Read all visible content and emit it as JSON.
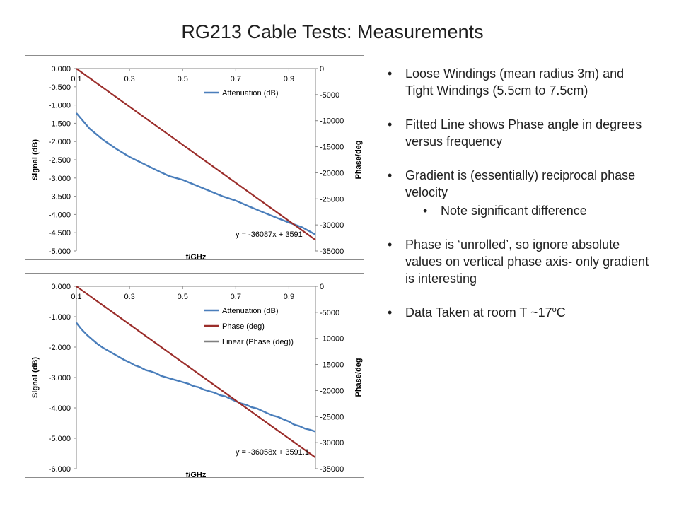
{
  "title": "RG213 Cable Tests: Measurements",
  "bullets": [
    {
      "text": "Loose Windings (mean radius 3m) and Tight Windings (5.5cm to 7.5cm)"
    },
    {
      "text": "Fitted Line shows Phase angle in degrees versus frequency"
    },
    {
      "text": "Gradient is (essentially) reciprocal phase velocity",
      "sub": "Note significant difference"
    },
    {
      "text": "Phase is ‘unrolled’, so ignore absolute values on vertical phase axis- only gradient is interesting"
    },
    {
      "text_before": "Data Taken at room T ~17",
      "text_sup": "o",
      "text_after": "C"
    }
  ],
  "chart_data": [
    {
      "type": "line",
      "xlabel": "f/GHz",
      "ylabel": "Signal (dB)",
      "y2label": "Phase/deg",
      "x_ticks": [
        "0.1",
        "0.3",
        "0.5",
        "0.7",
        "0.9"
      ],
      "y_ticks": [
        "0.000",
        "-0.500",
        "-1.000",
        "-1.500",
        "-2.000",
        "-2.500",
        "-3.000",
        "-3.500",
        "-4.000",
        "-4.500",
        "-5.000"
      ],
      "y2_ticks": [
        "0",
        "-5000",
        "-10000",
        "-15000",
        "-20000",
        "-25000",
        "-30000",
        "-35000"
      ],
      "xlim": [
        0.1,
        1.0
      ],
      "ylim": [
        -5.0,
        0.0
      ],
      "y2lim": [
        -35000,
        0
      ],
      "grid": false,
      "legend": "top-right",
      "series": [
        {
          "name": "Attenuation (dB)",
          "axis": "left",
          "color": "#4a7ebb",
          "x": [
            0.1,
            0.15,
            0.2,
            0.25,
            0.3,
            0.35,
            0.4,
            0.45,
            0.5,
            0.55,
            0.6,
            0.65,
            0.7,
            0.75,
            0.8,
            0.85,
            0.9,
            0.95,
            1.0
          ],
          "values": [
            -1.22,
            -1.65,
            -1.95,
            -2.2,
            -2.42,
            -2.6,
            -2.78,
            -2.95,
            -3.05,
            -3.2,
            -3.35,
            -3.5,
            -3.62,
            -3.78,
            -3.93,
            -4.08,
            -4.22,
            -4.35,
            -4.55
          ]
        },
        {
          "name": "",
          "axis": "right",
          "color": "#9b2d2a",
          "x": [
            0.1,
            1.0
          ],
          "values": [
            0,
            -32880
          ]
        }
      ],
      "equation": "y = -36087x + 3591"
    },
    {
      "type": "line",
      "xlabel": "f/GHz",
      "ylabel": "Signal (dB)",
      "y2label": "Phase/deg",
      "x_ticks": [
        "0.1",
        "0.3",
        "0.5",
        "0.7",
        "0.9"
      ],
      "y_ticks": [
        "0.000",
        "-1.000",
        "-2.000",
        "-3.000",
        "-4.000",
        "-5.000",
        "-6.000"
      ],
      "y2_ticks": [
        "0",
        "-5000",
        "-10000",
        "-15000",
        "-20000",
        "-25000",
        "-30000",
        "-35000"
      ],
      "xlim": [
        0.1,
        1.0
      ],
      "ylim": [
        -6.0,
        0.0
      ],
      "y2lim": [
        -35000,
        0
      ],
      "grid": false,
      "legend": "top-right",
      "series": [
        {
          "name": "Attenuation (dB)",
          "axis": "left",
          "color": "#4a7ebb",
          "x": [
            0.1,
            0.12,
            0.14,
            0.16,
            0.18,
            0.2,
            0.22,
            0.24,
            0.26,
            0.28,
            0.3,
            0.32,
            0.34,
            0.36,
            0.38,
            0.4,
            0.42,
            0.44,
            0.46,
            0.48,
            0.5,
            0.52,
            0.54,
            0.56,
            0.58,
            0.6,
            0.62,
            0.64,
            0.66,
            0.68,
            0.7,
            0.72,
            0.74,
            0.76,
            0.78,
            0.8,
            0.82,
            0.84,
            0.86,
            0.88,
            0.9,
            0.92,
            0.94,
            0.96,
            0.98,
            1.0
          ],
          "values": [
            -1.2,
            -1.42,
            -1.6,
            -1.75,
            -1.9,
            -2.02,
            -2.12,
            -2.22,
            -2.32,
            -2.42,
            -2.5,
            -2.6,
            -2.66,
            -2.75,
            -2.8,
            -2.86,
            -2.95,
            -3.0,
            -3.05,
            -3.1,
            -3.15,
            -3.2,
            -3.28,
            -3.32,
            -3.4,
            -3.45,
            -3.5,
            -3.58,
            -3.62,
            -3.7,
            -3.78,
            -3.85,
            -3.9,
            -3.98,
            -4.02,
            -4.1,
            -4.18,
            -4.25,
            -4.3,
            -4.38,
            -4.45,
            -4.55,
            -4.6,
            -4.68,
            -4.72,
            -4.78
          ]
        },
        {
          "name": "Phase (deg)",
          "axis": "right",
          "color": "#9b2d2a",
          "x": [
            0.1,
            1.0
          ],
          "values": [
            0,
            -32850
          ]
        },
        {
          "name": "Linear (Phase (deg))",
          "axis": "right",
          "color": "#7f7f7f",
          "x": [
            0.1,
            1.0
          ],
          "values": [
            0,
            -32850
          ]
        }
      ],
      "equation": "y = -36058x + 3591.1"
    }
  ]
}
